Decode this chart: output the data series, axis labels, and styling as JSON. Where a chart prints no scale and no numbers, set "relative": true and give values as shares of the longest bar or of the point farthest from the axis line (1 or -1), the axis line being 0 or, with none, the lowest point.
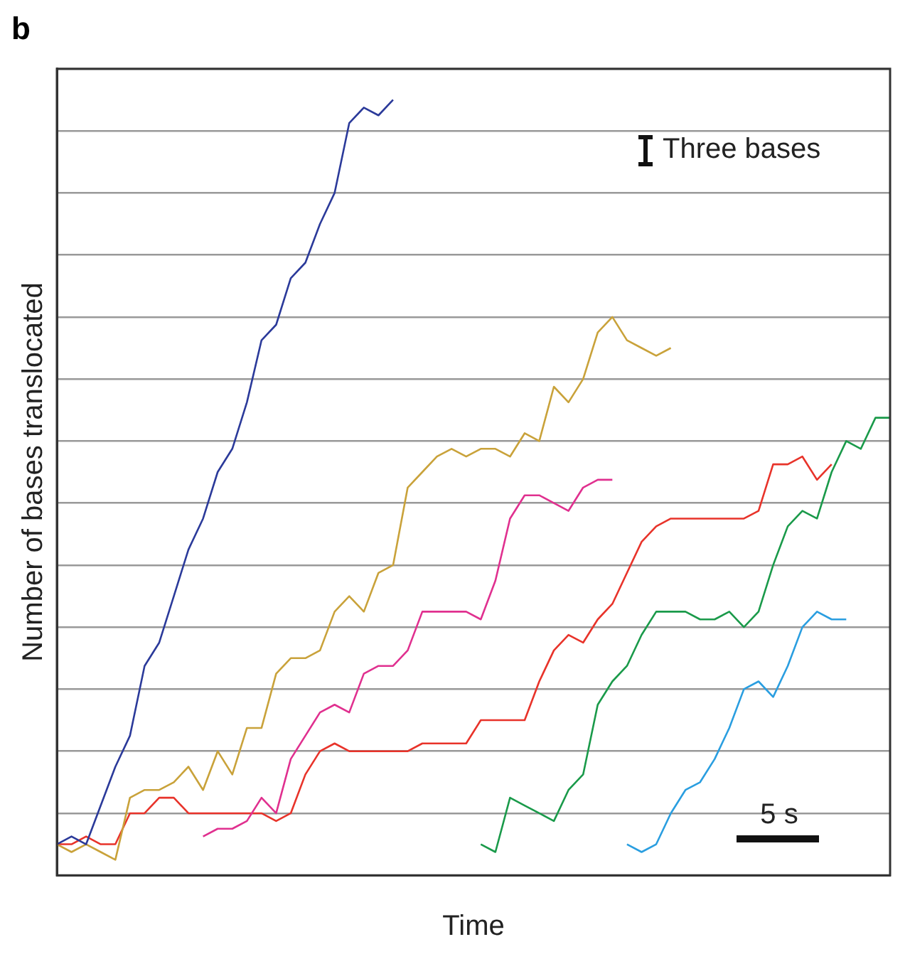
{
  "chart_data": {
    "type": "line",
    "title": "b",
    "xlabel": "Time",
    "ylabel": "Number of bases translocated",
    "relative": true,
    "grid": "y",
    "legend": false,
    "marker": "none",
    "line_style": "solid",
    "annotations": [
      "Three bases",
      "5 s"
    ],
    "categories": [
      null,
      null,
      null,
      null,
      null,
      null,
      null,
      null,
      null,
      null,
      null,
      null,
      null,
      null,
      null,
      null,
      null,
      null,
      null,
      null,
      null,
      null,
      null,
      null,
      null,
      null,
      null,
      null,
      null,
      null,
      null,
      null,
      null,
      null,
      null,
      null,
      null,
      null,
      null,
      null,
      null,
      null,
      null,
      null,
      null,
      null,
      null,
      null,
      null,
      null,
      null,
      null,
      null,
      null,
      null,
      null,
      null,
      null
    ],
    "series": [
      {
        "color": "#2b3a9a",
        "values": [
          0.04,
          0.05,
          0.04,
          0.09,
          0.14,
          0.18,
          0.27,
          0.3,
          0.36,
          0.42,
          0.46,
          0.52,
          0.55,
          0.61,
          0.69,
          0.71,
          0.77,
          0.79,
          0.84,
          0.88,
          0.97,
          0.99,
          0.98,
          1,
          null,
          null,
          null,
          null,
          null,
          null,
          null,
          null,
          null,
          null,
          null,
          null,
          null,
          null,
          null,
          null,
          null,
          null,
          null,
          null,
          null,
          null,
          null,
          null,
          null,
          null,
          null,
          null,
          null,
          null,
          null,
          null,
          null,
          null
        ]
      },
      {
        "color": "#c9a23a",
        "values": [
          0.04,
          0.03,
          0.04,
          0.03,
          0.02,
          0.1,
          0.11,
          0.11,
          0.12,
          0.14,
          0.11,
          0.16,
          0.13,
          0.19,
          0.19,
          0.26,
          0.28,
          0.28,
          0.29,
          0.34,
          0.36,
          0.34,
          0.39,
          0.4,
          0.5,
          0.52,
          0.54,
          0.55,
          0.54,
          0.55,
          0.55,
          0.54,
          0.57,
          0.56,
          0.63,
          0.61,
          0.64,
          0.7,
          0.72,
          0.69,
          0.68,
          0.67,
          0.68,
          null,
          null,
          null,
          null,
          null,
          null,
          null,
          null,
          null,
          null,
          null,
          null,
          null,
          null,
          null
        ]
      },
      {
        "color": "#e0308f",
        "values": [
          null,
          null,
          null,
          null,
          null,
          null,
          null,
          null,
          null,
          null,
          0.05,
          0.06,
          0.06,
          0.07,
          0.1,
          0.08,
          0.15,
          0.18,
          0.21,
          0.22,
          0.21,
          0.26,
          0.27,
          0.27,
          0.29,
          0.34,
          0.34,
          0.34,
          0.34,
          0.33,
          0.38,
          0.46,
          0.49,
          0.49,
          0.48,
          0.47,
          0.5,
          0.51,
          0.51,
          null,
          null,
          null,
          null,
          null,
          null,
          null,
          null,
          null,
          null,
          null,
          null,
          null,
          null,
          null,
          null,
          null,
          null,
          null
        ]
      },
      {
        "color": "#e8332a",
        "values": [
          0.04,
          0.04,
          0.05,
          0.04,
          0.04,
          0.08,
          0.08,
          0.1,
          0.1,
          0.08,
          0.08,
          0.08,
          0.08,
          0.08,
          0.08,
          0.07,
          0.08,
          0.13,
          0.16,
          0.17,
          0.16,
          0.16,
          0.16,
          0.16,
          0.16,
          0.17,
          0.17,
          0.17,
          0.17,
          0.2,
          0.2,
          0.2,
          0.2,
          0.25,
          0.29,
          0.31,
          0.3,
          0.33,
          0.35,
          0.39,
          0.43,
          0.45,
          0.46,
          0.46,
          0.46,
          0.46,
          0.46,
          0.46,
          0.47,
          0.53,
          0.53,
          0.54,
          0.51,
          0.53,
          null,
          null,
          null,
          null
        ]
      },
      {
        "color": "#1a9a4a",
        "values": [
          null,
          null,
          null,
          null,
          null,
          null,
          null,
          null,
          null,
          null,
          null,
          null,
          null,
          null,
          null,
          null,
          null,
          null,
          null,
          null,
          null,
          null,
          null,
          null,
          null,
          null,
          null,
          null,
          null,
          0.04,
          0.03,
          0.1,
          0.09,
          0.08,
          0.07,
          0.11,
          0.13,
          0.22,
          0.25,
          0.27,
          0.31,
          0.34,
          0.34,
          0.34,
          0.33,
          0.33,
          0.34,
          0.32,
          0.34,
          0.4,
          0.45,
          0.47,
          0.46,
          0.52,
          0.56,
          0.55,
          0.59,
          0.59
        ]
      },
      {
        "color": "#2a9ee0",
        "values": [
          null,
          null,
          null,
          null,
          null,
          null,
          null,
          null,
          null,
          null,
          null,
          null,
          null,
          null,
          null,
          null,
          null,
          null,
          null,
          null,
          null,
          null,
          null,
          null,
          null,
          null,
          null,
          null,
          null,
          null,
          null,
          null,
          null,
          null,
          null,
          null,
          null,
          null,
          null,
          0.04,
          0.03,
          0.04,
          0.08,
          0.11,
          0.12,
          0.15,
          0.19,
          0.24,
          0.25,
          0.23,
          0.27,
          0.32,
          0.34,
          0.33,
          0.33,
          null,
          null,
          null
        ]
      }
    ]
  }
}
